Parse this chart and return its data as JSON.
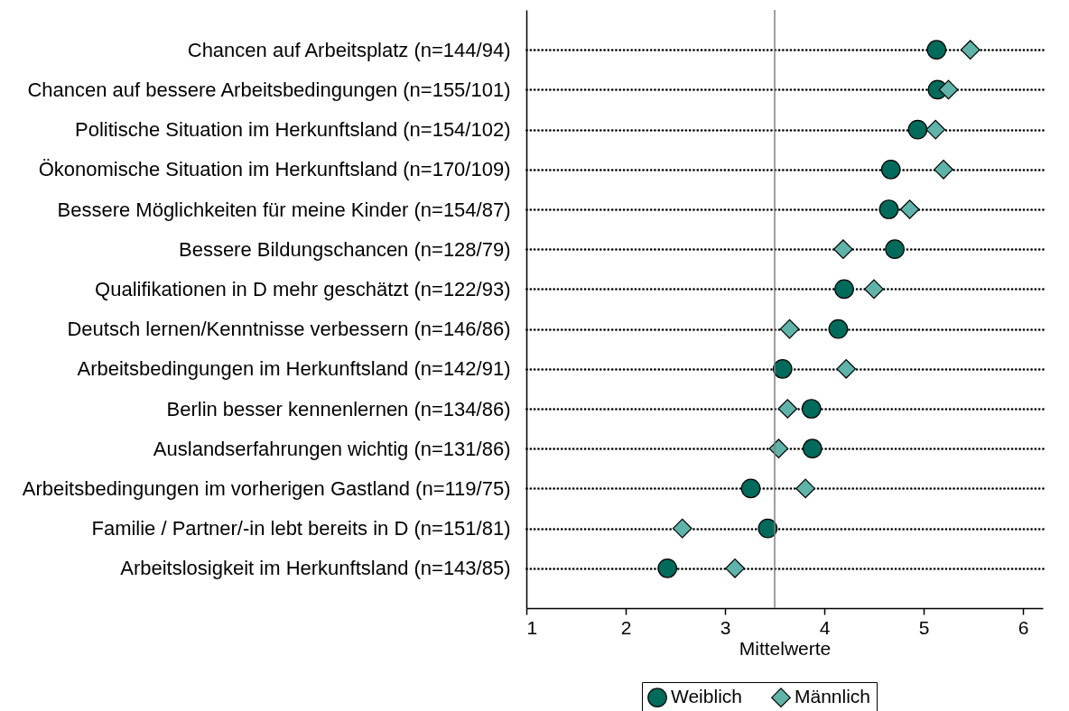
{
  "chart_data": {
    "type": "scatter",
    "categories": [
      "Chancen auf Arbeitsplatz (n=144/94)",
      "Chancen auf bessere Arbeitsbedingungen (n=155/101)",
      "Politische Situation im Herkunftsland (n=154/102)",
      "Ökonomische Situation im Herkunftsland (n=170/109)",
      "Bessere Möglichkeiten für meine Kinder (n=154/87)",
      "Bessere Bildungschancen (n=128/79)",
      "Qualifikationen in D mehr geschätzt (n=122/93)",
      "Deutsch lernen/Kenntnisse verbessern (n=146/86)",
      "Arbeitsbedingungen im Herkunftsland (n=142/91)",
      "Berlin besser kennenlernen (n=134/86)",
      "Auslandserfahrungen wichtig (n=131/86)",
      "Arbeitsbedingungen im vorherigen Gastland (n=119/75)",
      "Familie / Partner/-in lebt bereits in D (n=151/81)",
      "Arbeitslosigkeit im Herkunftsland (n=143/85)"
    ],
    "orientation": "horizontal",
    "series": [
      {
        "name": "Weiblich",
        "color": "#006b5b",
        "marker": "circle",
        "values": [
          5.13,
          5.14,
          4.94,
          4.67,
          4.65,
          4.71,
          4.2,
          4.14,
          3.58,
          3.87,
          3.88,
          3.26,
          3.43,
          2.42
        ]
      },
      {
        "name": "Männlich",
        "color": "#5fb3a8",
        "marker": "diamond",
        "values": [
          5.47,
          5.25,
          5.12,
          5.2,
          4.86,
          4.19,
          4.5,
          3.65,
          4.22,
          3.63,
          3.54,
          3.81,
          2.57,
          3.1
        ]
      }
    ],
    "xlabel": "Mittelwerte",
    "xlim": [
      1,
      6.2
    ],
    "xticks": [
      1,
      2,
      3,
      4,
      5,
      6
    ],
    "grid": "y",
    "line_style": "dotted",
    "legend": "bottom",
    "ref_lines": [
      {
        "axis": "x",
        "value": 3.5,
        "color": "#808080"
      }
    ]
  }
}
